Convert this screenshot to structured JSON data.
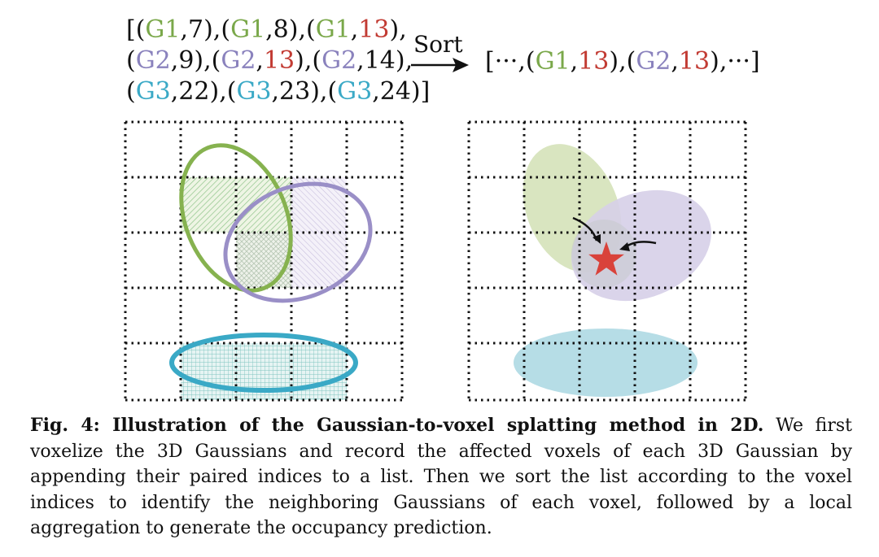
{
  "pairs_left": {
    "line1": [
      {
        "t": "[(",
        "c": "blk"
      },
      {
        "t": "G1",
        "c": "g1"
      },
      {
        "t": ",7),(",
        "c": "blk"
      },
      {
        "t": "G1",
        "c": "g1"
      },
      {
        "t": ",8),(",
        "c": "blk"
      },
      {
        "t": "G1",
        "c": "g1"
      },
      {
        "t": ",",
        "c": "blk"
      },
      {
        "t": "13",
        "c": "r13"
      },
      {
        "t": "),",
        "c": "blk"
      }
    ],
    "line2": [
      {
        "t": "(",
        "c": "blk"
      },
      {
        "t": "G2",
        "c": "g2"
      },
      {
        "t": ",9),(",
        "c": "blk"
      },
      {
        "t": "G2",
        "c": "g2"
      },
      {
        "t": ",",
        "c": "blk"
      },
      {
        "t": "13",
        "c": "r13"
      },
      {
        "t": "),(",
        "c": "blk"
      },
      {
        "t": "G2",
        "c": "g2"
      },
      {
        "t": ",14),",
        "c": "blk"
      }
    ],
    "line3": [
      {
        "t": "(",
        "c": "blk"
      },
      {
        "t": "G3",
        "c": "g3"
      },
      {
        "t": ",22),(",
        "c": "blk"
      },
      {
        "t": "G3",
        "c": "g3"
      },
      {
        "t": ",23),(",
        "c": "blk"
      },
      {
        "t": "G3",
        "c": "g3"
      },
      {
        "t": ",24)]",
        "c": "blk"
      }
    ]
  },
  "sort_label": "Sort",
  "pairs_right": [
    {
      "t": "[···,(",
      "c": "blk"
    },
    {
      "t": "G1",
      "c": "g1"
    },
    {
      "t": ",",
      "c": "blk"
    },
    {
      "t": "13",
      "c": "r13"
    },
    {
      "t": "),(",
      "c": "blk"
    },
    {
      "t": "G2",
      "c": "g2"
    },
    {
      "t": ",",
      "c": "blk"
    },
    {
      "t": "13",
      "c": "r13"
    },
    {
      "t": "),···]",
      "c": "blk"
    }
  ],
  "colors": {
    "g1": "#7aa84a",
    "g2": "#8a82bd",
    "g3": "#3aa9c6",
    "highlight": "#c23b33",
    "g1_fill": "#d9e5c0",
    "g2_fill": "#dcd6ea",
    "g3_fill": "#b6dde6",
    "star": "#d9423a"
  },
  "icons": {
    "star": "star-icon",
    "arrow": "right-arrow-icon"
  },
  "caption": {
    "label": "Fig. 4: Illustration of the Gaussian-to-voxel splatting method in 2D.",
    "body": " We first voxelize the 3D Gaussians and record the affected voxels of each 3D Gaussian by appending their paired indices to a list. Then we sort the list according to the voxel indices to identify the neighboring Gaussians of each voxel, followed by a local aggregation to generate the occupancy prediction."
  }
}
